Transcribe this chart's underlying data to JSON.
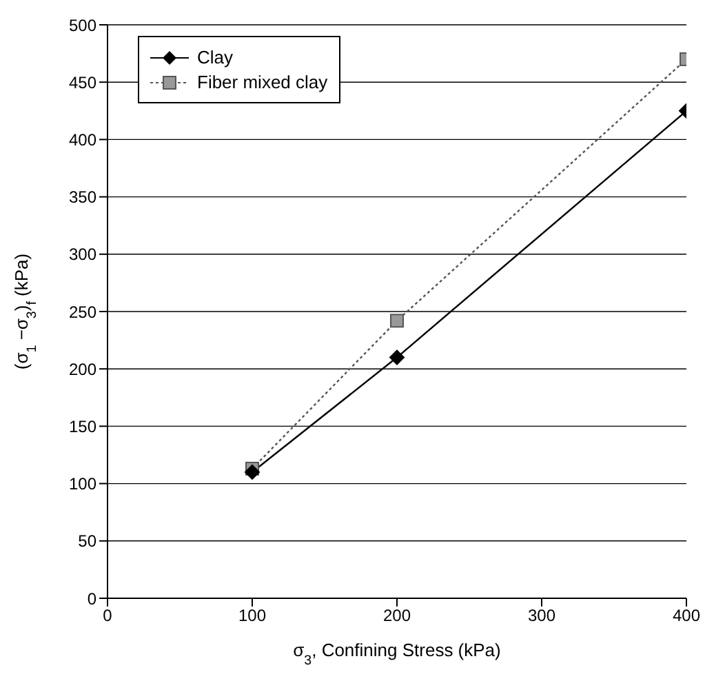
{
  "chart_data": {
    "type": "line",
    "xlabel": "σ$_{3}$, Confining Stress (kPa)",
    "ylabel": "(σ$_{1}$ −σ$_{3}$)$_{f}$ (kPa)",
    "x": [
      100,
      200,
      400
    ],
    "series": [
      {
        "name": "Clay",
        "color": "#000000",
        "values": [
          110,
          210,
          425
        ],
        "marker": "diamond",
        "line_style": "solid"
      },
      {
        "name": "Fiber mixed clay",
        "color": "#555555",
        "values": [
          113,
          242,
          470
        ],
        "marker": "square",
        "line_style": "dotted"
      }
    ],
    "xlim": [
      0,
      400
    ],
    "xticks": [
      0,
      100,
      200,
      300,
      400
    ],
    "ylim": [
      0,
      500
    ],
    "yticks": [
      0,
      50,
      100,
      150,
      200,
      250,
      300,
      350,
      400,
      450,
      500
    ],
    "grid": "y",
    "legend": "top left"
  }
}
